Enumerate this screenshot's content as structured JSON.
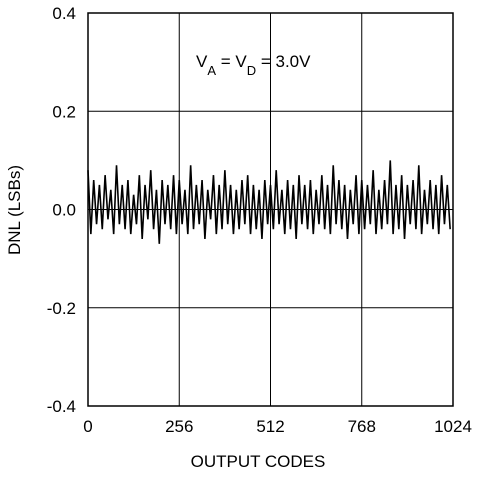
{
  "chart_data": {
    "type": "line",
    "annotation": [
      {
        "text": "V"
      },
      {
        "text": "A",
        "sub": true
      },
      {
        "text": " = V"
      },
      {
        "text": "D",
        "sub": true
      },
      {
        "text": " = 3.0V"
      }
    ],
    "xlabel": "OUTPUT CODES",
    "ylabel": "DNL (LSBs)",
    "xlim": [
      0,
      1024
    ],
    "xticks": [
      0,
      256,
      512,
      768,
      1024
    ],
    "ylim": [
      -0.4,
      0.4
    ],
    "yticks": [
      -0.4,
      -0.2,
      {
        "value": 0,
        "label": "0.0"
      },
      0.2,
      0.4
    ],
    "grid": true,
    "x": [
      0,
      8,
      16,
      24,
      32,
      40,
      48,
      56,
      64,
      72,
      80,
      88,
      96,
      104,
      112,
      120,
      128,
      136,
      144,
      152,
      160,
      168,
      176,
      184,
      192,
      200,
      208,
      216,
      224,
      232,
      240,
      248,
      256,
      264,
      272,
      280,
      288,
      296,
      304,
      312,
      320,
      328,
      336,
      344,
      352,
      360,
      368,
      376,
      384,
      392,
      400,
      408,
      416,
      424,
      432,
      440,
      448,
      456,
      464,
      472,
      480,
      488,
      496,
      504,
      512,
      520,
      528,
      536,
      544,
      552,
      560,
      568,
      576,
      584,
      592,
      600,
      608,
      616,
      624,
      632,
      640,
      648,
      656,
      664,
      672,
      680,
      688,
      696,
      704,
      712,
      720,
      728,
      736,
      744,
      752,
      760,
      768,
      776,
      784,
      792,
      800,
      808,
      816,
      824,
      832,
      840,
      848,
      856,
      864,
      872,
      880,
      888,
      896,
      904,
      912,
      920,
      928,
      936,
      944,
      952,
      960,
      968,
      976,
      984,
      992,
      1000,
      1008,
      1016
    ],
    "series": [
      {
        "name": "DNL",
        "color": "#000000",
        "values": [
          0.08,
          -0.05,
          0.06,
          -0.03,
          0.05,
          -0.04,
          0.07,
          -0.02,
          0.04,
          -0.05,
          0.09,
          -0.03,
          0.05,
          -0.04,
          0.06,
          -0.05,
          0.03,
          -0.03,
          0.07,
          -0.06,
          0.05,
          -0.02,
          0.08,
          -0.04,
          0.04,
          -0.07,
          0.06,
          -0.03,
          0.05,
          -0.04,
          0.07,
          -0.05,
          0.06,
          -0.03,
          0.04,
          -0.05,
          0.09,
          -0.04,
          0.05,
          -0.03,
          0.06,
          -0.06,
          0.04,
          -0.02,
          0.07,
          -0.05,
          0.05,
          -0.04,
          0.08,
          -0.03,
          0.05,
          -0.05,
          0.04,
          -0.04,
          0.06,
          -0.03,
          0.07,
          -0.05,
          0.05,
          -0.04,
          0.04,
          -0.06,
          0.06,
          -0.03,
          0.05,
          -0.04,
          0.08,
          -0.03,
          0.04,
          -0.05,
          0.06,
          -0.04,
          0.05,
          -0.06,
          0.07,
          -0.03,
          0.05,
          -0.04,
          0.06,
          -0.05,
          0.04,
          -0.03,
          0.07,
          -0.04,
          0.05,
          -0.05,
          0.09,
          -0.03,
          0.06,
          -0.04,
          0.05,
          -0.06,
          0.04,
          -0.03,
          0.07,
          -0.05,
          0.06,
          -0.04,
          0.05,
          -0.03,
          0.08,
          -0.05,
          0.04,
          -0.04,
          0.06,
          -0.03,
          0.1,
          -0.05,
          0.05,
          -0.04,
          0.07,
          -0.06,
          0.05,
          -0.03,
          0.06,
          -0.04,
          0.09,
          -0.05,
          0.04,
          -0.03,
          0.06,
          -0.04,
          0.05,
          -0.05,
          0.07,
          -0.03,
          0.05,
          -0.04
        ]
      }
    ]
  }
}
